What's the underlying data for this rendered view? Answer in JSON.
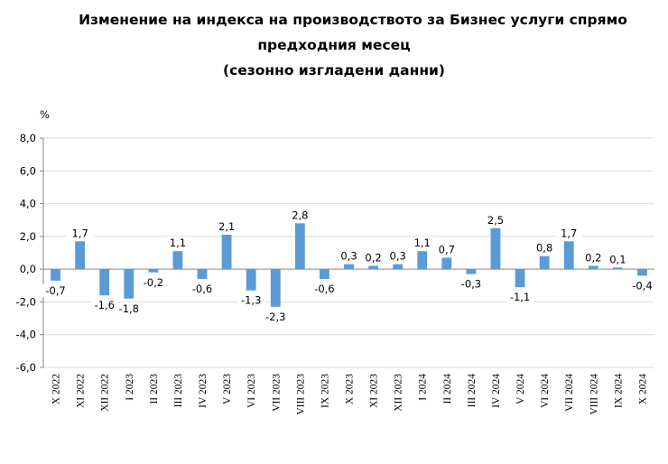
{
  "title_lines": [
    "Изменение на индекса на производството за Бизнес услуги спрямо",
    "предходния месец",
    "(сезонно изгладени данни)"
  ],
  "chart_data": {
    "type": "bar",
    "title": "Изменение на индекса на производството за Бизнес услуги спрямо предходния месец (сезонно изгладени данни)",
    "ylabel": "%",
    "xlabel": "",
    "ylim": [
      -6.0,
      8.0
    ],
    "yticks": [
      -6.0,
      -4.0,
      -2.0,
      0.0,
      2.0,
      4.0,
      6.0,
      8.0
    ],
    "ytick_labels": [
      "-6,0",
      "-4,0",
      "-2,0",
      "0,0",
      "2,0",
      "4,0",
      "6,0",
      "8,0"
    ],
    "grid": true,
    "legend": false,
    "bar_color": "#5B9BD5",
    "categories": [
      "X 2022",
      "XI 2022",
      "XII 2022",
      "I 2023",
      "II 2023",
      "III 2023",
      "IV 2023",
      "V 2023",
      "VI 2023",
      "VII 2023",
      "VIII 2023",
      "IX 2023",
      "X 2023",
      "XI 2023",
      "XII 2023",
      "I 2024",
      "II 2024",
      "III 2024",
      "IV 2024",
      "V 2024",
      "VI 2024",
      "VII 2024",
      "VIII 2024",
      "IX 2024",
      "X 2024"
    ],
    "values": [
      -0.7,
      1.7,
      -1.6,
      -1.8,
      -0.2,
      1.1,
      -0.6,
      2.1,
      -1.3,
      -2.3,
      2.8,
      -0.6,
      0.3,
      0.2,
      0.3,
      1.1,
      0.7,
      -0.3,
      2.5,
      -1.1,
      0.8,
      1.7,
      0.2,
      0.1,
      -0.4
    ],
    "data_labels": [
      "-0,7",
      "1,7",
      "-1,6",
      "-1,8",
      "-0,2",
      "1,1",
      "-0,6",
      "2,1",
      "-1,3",
      "-2,3",
      "2,8",
      "-0,6",
      "0,3",
      "0,2",
      "0,3",
      "1,1",
      "0,7",
      "-0,3",
      "2,5",
      "-1,1",
      "0,8",
      "1,7",
      "0,2",
      "0,1",
      "-0,4"
    ]
  }
}
